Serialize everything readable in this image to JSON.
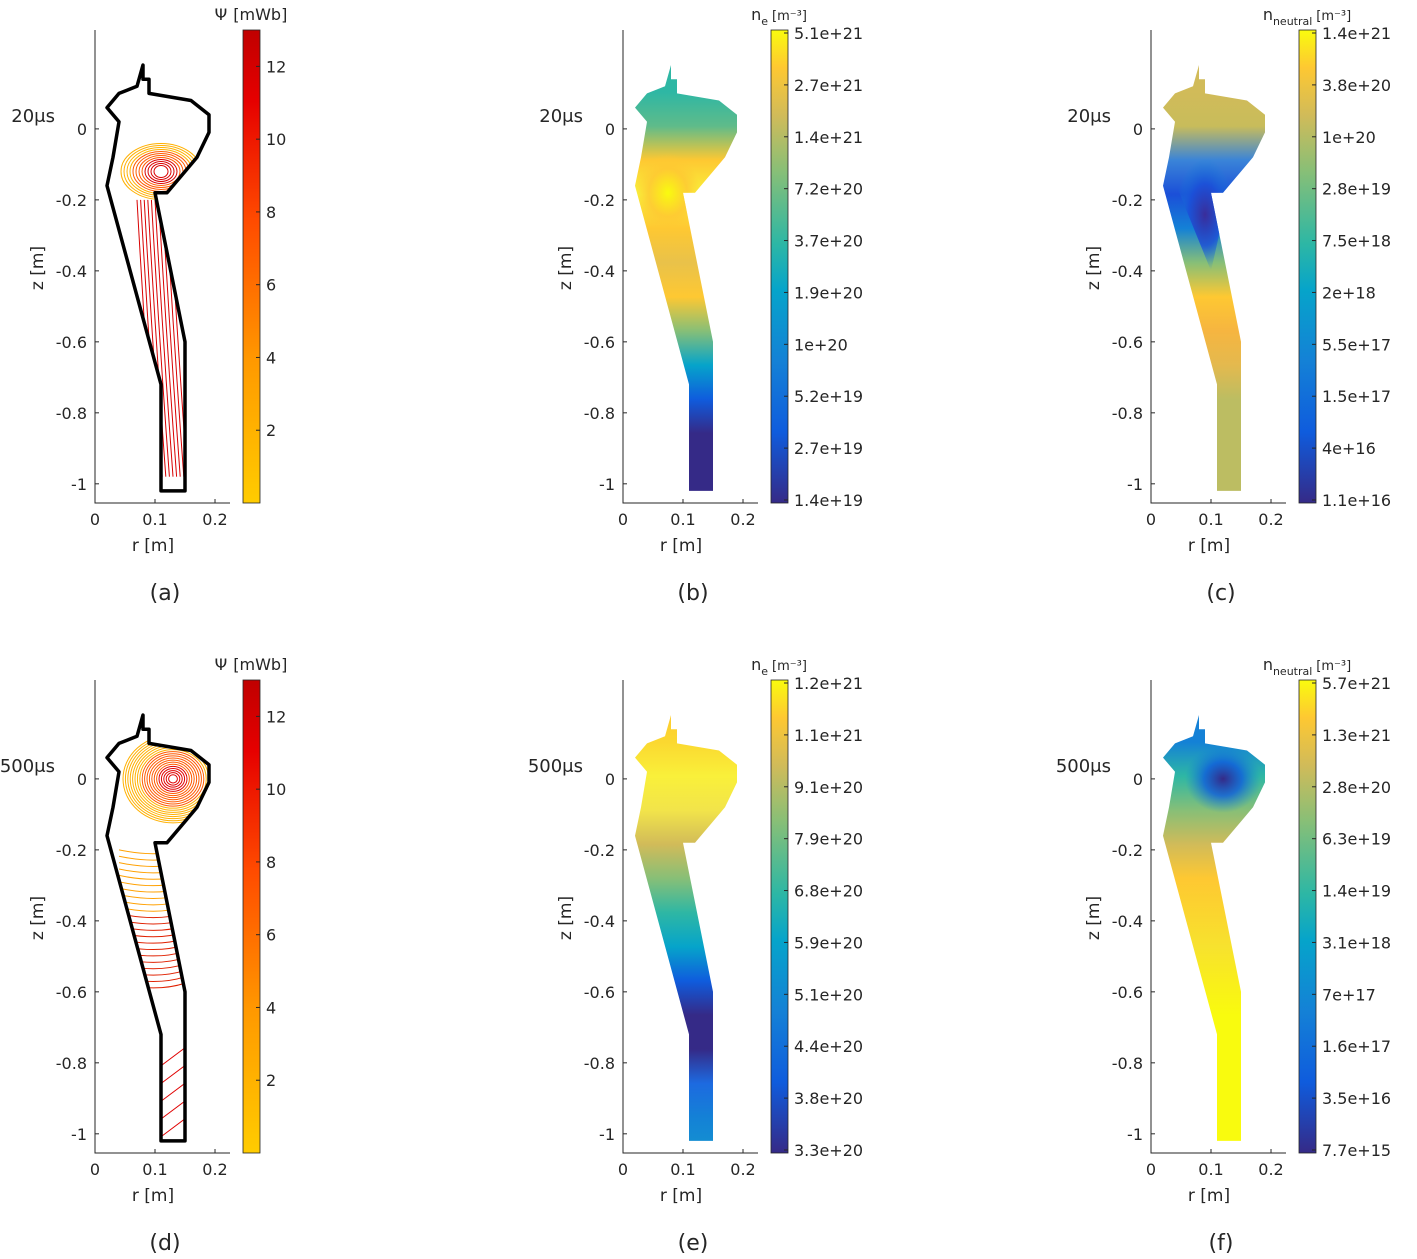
{
  "colors": {
    "time_label": "#ff1a1a",
    "wall": "#000000"
  },
  "panels": [
    {
      "caption": "(a)",
      "time": "20μs",
      "quantity": "psi",
      "cb_prefix": "Ψ",
      "cb_sub": "",
      "cb_unit": "[mWb]",
      "cb_ticks": [
        "12",
        "10",
        "8",
        "6",
        "4",
        "2"
      ]
    },
    {
      "caption": "(b)",
      "time": "20μs",
      "quantity": "ne",
      "cb_prefix": "n",
      "cb_sub": "e",
      "cb_unit": "[m⁻³]",
      "cb_ticks": [
        "5.1e+21",
        "2.7e+21",
        "1.4e+21",
        "7.2e+20",
        "3.7e+20",
        "1.9e+20",
        "1e+20",
        "5.2e+19",
        "2.7e+19",
        "1.4e+19"
      ]
    },
    {
      "caption": "(c)",
      "time": "20μs",
      "quantity": "nn",
      "cb_prefix": "n",
      "cb_sub": "neutral",
      "cb_unit": "[m⁻³]",
      "cb_ticks": [
        "1.4e+21",
        "3.8e+20",
        "1e+20",
        "2.8e+19",
        "7.5e+18",
        "2e+18",
        "5.5e+17",
        "1.5e+17",
        "4e+16",
        "1.1e+16"
      ]
    },
    {
      "caption": "(d)",
      "time": "500μs",
      "quantity": "psi",
      "cb_prefix": "Ψ",
      "cb_sub": "",
      "cb_unit": "[mWb]",
      "cb_ticks": [
        "12",
        "10",
        "8",
        "6",
        "4",
        "2"
      ]
    },
    {
      "caption": "(e)",
      "time": "500μs",
      "quantity": "ne",
      "cb_prefix": "n",
      "cb_sub": "e",
      "cb_unit": "[m⁻³]",
      "cb_ticks": [
        "1.2e+21",
        "1.1e+21",
        "9.1e+20",
        "7.9e+20",
        "6.8e+20",
        "5.9e+20",
        "5.1e+20",
        "4.4e+20",
        "3.8e+20",
        "3.3e+20"
      ]
    },
    {
      "caption": "(f)",
      "time": "500μs",
      "quantity": "nn",
      "cb_prefix": "n",
      "cb_sub": "neutral",
      "cb_unit": "[m⁻³]",
      "cb_ticks": [
        "5.7e+21",
        "1.3e+21",
        "2.8e+20",
        "6.3e+19",
        "1.4e+19",
        "3.1e+18",
        "7e+17",
        "1.6e+17",
        "3.5e+16",
        "7.7e+15"
      ]
    }
  ],
  "chart_data": {
    "type": "heatmap",
    "xlabel": "r [m]",
    "ylabel": "z [m]",
    "xlim": [
      0,
      0.2
    ],
    "ylim": [
      -1.05,
      0.18
    ],
    "xticks": [
      "0",
      "0.1",
      "0.2"
    ],
    "yticks": [
      "0",
      "-0.2",
      "-0.4",
      "-0.6",
      "-0.8",
      "-1"
    ],
    "psi_colorbar_range_mWb": [
      0,
      13
    ],
    "psi_colorbar_ticks": [
      2,
      4,
      6,
      8,
      10,
      12
    ],
    "wall_outline_rz": [
      [
        0.08,
        0.18
      ],
      [
        0.08,
        0.14
      ],
      [
        0.09,
        0.14
      ],
      [
        0.09,
        0.1
      ],
      [
        0.16,
        0.08
      ],
      [
        0.19,
        0.04
      ],
      [
        0.19,
        -0.01
      ],
      [
        0.17,
        -0.08
      ],
      [
        0.15,
        -0.12
      ],
      [
        0.12,
        -0.18
      ],
      [
        0.1,
        -0.18
      ],
      [
        0.15,
        -0.6
      ],
      [
        0.15,
        -1.02
      ],
      [
        0.11,
        -1.02
      ],
      [
        0.11,
        -0.72
      ],
      [
        0.02,
        -0.16
      ],
      [
        0.03,
        -0.08
      ],
      [
        0.04,
        0.02
      ],
      [
        0.02,
        0.06
      ],
      [
        0.04,
        0.1
      ],
      [
        0.07,
        0.12
      ],
      [
        0.08,
        0.18
      ]
    ]
  }
}
